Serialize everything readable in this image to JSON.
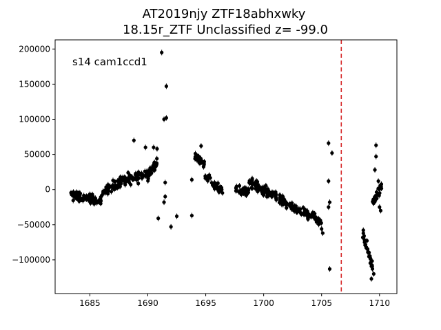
{
  "chart_data": {
    "type": "scatter",
    "title": "AT2019njy  ZTF18abhxwky",
    "subtitle": "18.15r_ZTF Unclassified z= -99.0",
    "annotation": "s14 cam1ccd1",
    "xlabel": "",
    "ylabel": "",
    "xlim": [
      1682.0,
      1711.5
    ],
    "ylim": [
      -148000,
      213000
    ],
    "x_ticks": [
      1685,
      1690,
      1695,
      1700,
      1705,
      1710
    ],
    "y_ticks": [
      -100000,
      -50000,
      0,
      50000,
      100000,
      150000,
      200000
    ],
    "grid": false,
    "marker_color": "#000000",
    "vline": {
      "x": 1706.7,
      "color": "#d62728",
      "style": "dashed"
    },
    "segments": [
      {
        "x0": 1683.3,
        "x1": 1686.0,
        "y0": -8000,
        "y1": -16000,
        "noise": 9000,
        "n": 90
      },
      {
        "x0": 1686.0,
        "x1": 1688.0,
        "y0": -5000,
        "y1": 15000,
        "noise": 10000,
        "n": 60
      },
      {
        "x0": 1688.0,
        "x1": 1690.2,
        "y0": 15000,
        "y1": 22000,
        "noise": 12000,
        "n": 70
      },
      {
        "x0": 1690.2,
        "x1": 1690.8,
        "y0": 25000,
        "y1": 38000,
        "noise": 10000,
        "n": 25
      },
      {
        "x0": 1694.0,
        "x1": 1694.9,
        "y0": 50000,
        "y1": 35000,
        "noise": 8000,
        "n": 35
      },
      {
        "x0": 1694.9,
        "x1": 1696.5,
        "y0": 20000,
        "y1": -2000,
        "noise": 8000,
        "n": 40
      },
      {
        "x0": 1697.5,
        "x1": 1698.7,
        "y0": 2000,
        "y1": -5000,
        "noise": 9000,
        "n": 45
      },
      {
        "x0": 1698.7,
        "x1": 1700.5,
        "y0": 12000,
        "y1": -5000,
        "noise": 10000,
        "n": 60
      },
      {
        "x0": 1700.5,
        "x1": 1702.5,
        "y0": -5000,
        "y1": -25000,
        "noise": 9000,
        "n": 55
      },
      {
        "x0": 1702.5,
        "x1": 1705.0,
        "y0": -25000,
        "y1": -45000,
        "noise": 9000,
        "n": 60
      },
      {
        "x0": 1708.5,
        "x1": 1709.4,
        "y0": -60000,
        "y1": -110000,
        "noise": 12000,
        "n": 30
      },
      {
        "x0": 1709.4,
        "x1": 1710.2,
        "y0": -20000,
        "y1": 5000,
        "noise": 10000,
        "n": 25
      }
    ],
    "points": [
      {
        "x": 1691.2,
        "y": 195000
      },
      {
        "x": 1691.6,
        "y": 147000
      },
      {
        "x": 1691.4,
        "y": 100000
      },
      {
        "x": 1691.6,
        "y": 102000
      },
      {
        "x": 1691.5,
        "y": 10000
      },
      {
        "x": 1691.5,
        "y": -10000
      },
      {
        "x": 1691.4,
        "y": -18000
      },
      {
        "x": 1690.9,
        "y": -41000
      },
      {
        "x": 1692.0,
        "y": -53000
      },
      {
        "x": 1692.5,
        "y": -38000
      },
      {
        "x": 1693.8,
        "y": -37000
      },
      {
        "x": 1693.8,
        "y": 14000
      },
      {
        "x": 1690.8,
        "y": 58000
      },
      {
        "x": 1690.5,
        "y": 60000
      },
      {
        "x": 1688.8,
        "y": 70000
      },
      {
        "x": 1689.8,
        "y": 60000
      },
      {
        "x": 1694.6,
        "y": 62000
      },
      {
        "x": 1705.1,
        "y": -62000
      },
      {
        "x": 1705.0,
        "y": -56000
      },
      {
        "x": 1705.6,
        "y": 66000
      },
      {
        "x": 1705.9,
        "y": 52000
      },
      {
        "x": 1705.6,
        "y": 12000
      },
      {
        "x": 1705.7,
        "y": -18000
      },
      {
        "x": 1705.6,
        "y": -25000
      },
      {
        "x": 1705.7,
        "y": -113000
      },
      {
        "x": 1709.7,
        "y": 63000
      },
      {
        "x": 1709.7,
        "y": 47000
      },
      {
        "x": 1709.6,
        "y": 28000
      },
      {
        "x": 1709.9,
        "y": 12000
      },
      {
        "x": 1710.1,
        "y": -30000
      },
      {
        "x": 1710.0,
        "y": -25000
      },
      {
        "x": 1709.3,
        "y": -127000
      },
      {
        "x": 1709.5,
        "y": -120000
      }
    ]
  }
}
